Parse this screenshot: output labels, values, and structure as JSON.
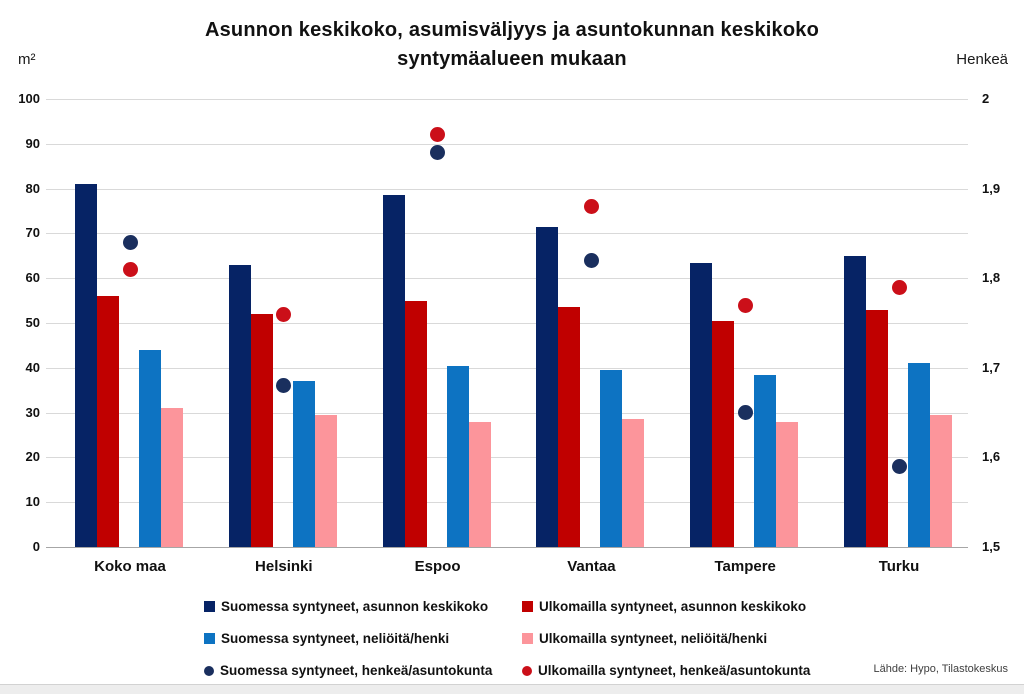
{
  "header": {
    "title_line1": "Asunnon keskikoko, asumisväljyys ja asuntokunnan keskikoko",
    "title_line2": "syntymäalueen mukaan",
    "unit_left": "m²",
    "unit_right": "Henkeä"
  },
  "source": "Lähde: Hypo, Tilastokeskus",
  "colors": {
    "navy": "#062365",
    "red": "#c00000",
    "blue": "#0d73c2",
    "pink": "#fc959b",
    "navyDot": "#1a2f5e",
    "redDot": "#cb0f19",
    "grid": "#d9d9d9",
    "baseline": "#a6a6a6"
  },
  "chart_data": {
    "type": "bar",
    "title": "Asunnon keskikoko, asumisväljyys ja asuntokunnan keskikoko syntymäalueen mukaan",
    "categories": [
      "Koko maa",
      "Helsinki",
      "Espoo",
      "Vantaa",
      "Tampere",
      "Turku"
    ],
    "left_axis": {
      "label": "m²",
      "min": 0,
      "max": 100,
      "tick_step": 10,
      "ticks": [
        "0",
        "10",
        "20",
        "30",
        "40",
        "50",
        "60",
        "70",
        "80",
        "90",
        "100"
      ]
    },
    "right_axis": {
      "label": "Henkeä",
      "min": 1.5,
      "max": 2,
      "ticks": [
        {
          "value": 1.5,
          "label": "1,5"
        },
        {
          "value": 1.6,
          "label": "1,6"
        },
        {
          "value": 1.7,
          "label": "1,7"
        },
        {
          "value": 1.8,
          "label": "1,8"
        },
        {
          "value": 1.9,
          "label": "1,9"
        },
        {
          "value": 2.0,
          "label": "2"
        }
      ]
    },
    "grid": true,
    "legend_position": "bottom",
    "series": [
      {
        "name": "Suomessa syntyneet, asunnon keskikoko",
        "type": "bar",
        "axis": "left",
        "color": "navy",
        "values": [
          81,
          63,
          78.5,
          71.5,
          63.5,
          65
        ]
      },
      {
        "name": "Ulkomailla syntyneet, asunnon keskikoko",
        "type": "bar",
        "axis": "left",
        "color": "red",
        "values": [
          56,
          52,
          55,
          53.5,
          50.5,
          53
        ]
      },
      {
        "name": "Suomessa syntyneet, neliöitä/henki",
        "type": "bar",
        "axis": "left",
        "color": "blue",
        "values": [
          44,
          37,
          40.5,
          39.5,
          38.5,
          41
        ]
      },
      {
        "name": "Ulkomailla syntyneet, neliöitä/henki",
        "type": "bar",
        "axis": "left",
        "color": "pink",
        "values": [
          31,
          29.5,
          28,
          28.5,
          28,
          29.5
        ]
      },
      {
        "name": "Suomessa syntyneet, henkeä/asuntokunta",
        "type": "scatter",
        "axis": "right",
        "color": "navyDot",
        "values": [
          1.84,
          1.68,
          1.94,
          1.82,
          1.65,
          1.59
        ]
      },
      {
        "name": "Ulkomailla syntyneet, henkeä/asuntokunta",
        "type": "scatter",
        "axis": "right",
        "color": "redDot",
        "values": [
          1.81,
          1.76,
          1.96,
          1.88,
          1.77,
          1.79
        ]
      }
    ]
  }
}
